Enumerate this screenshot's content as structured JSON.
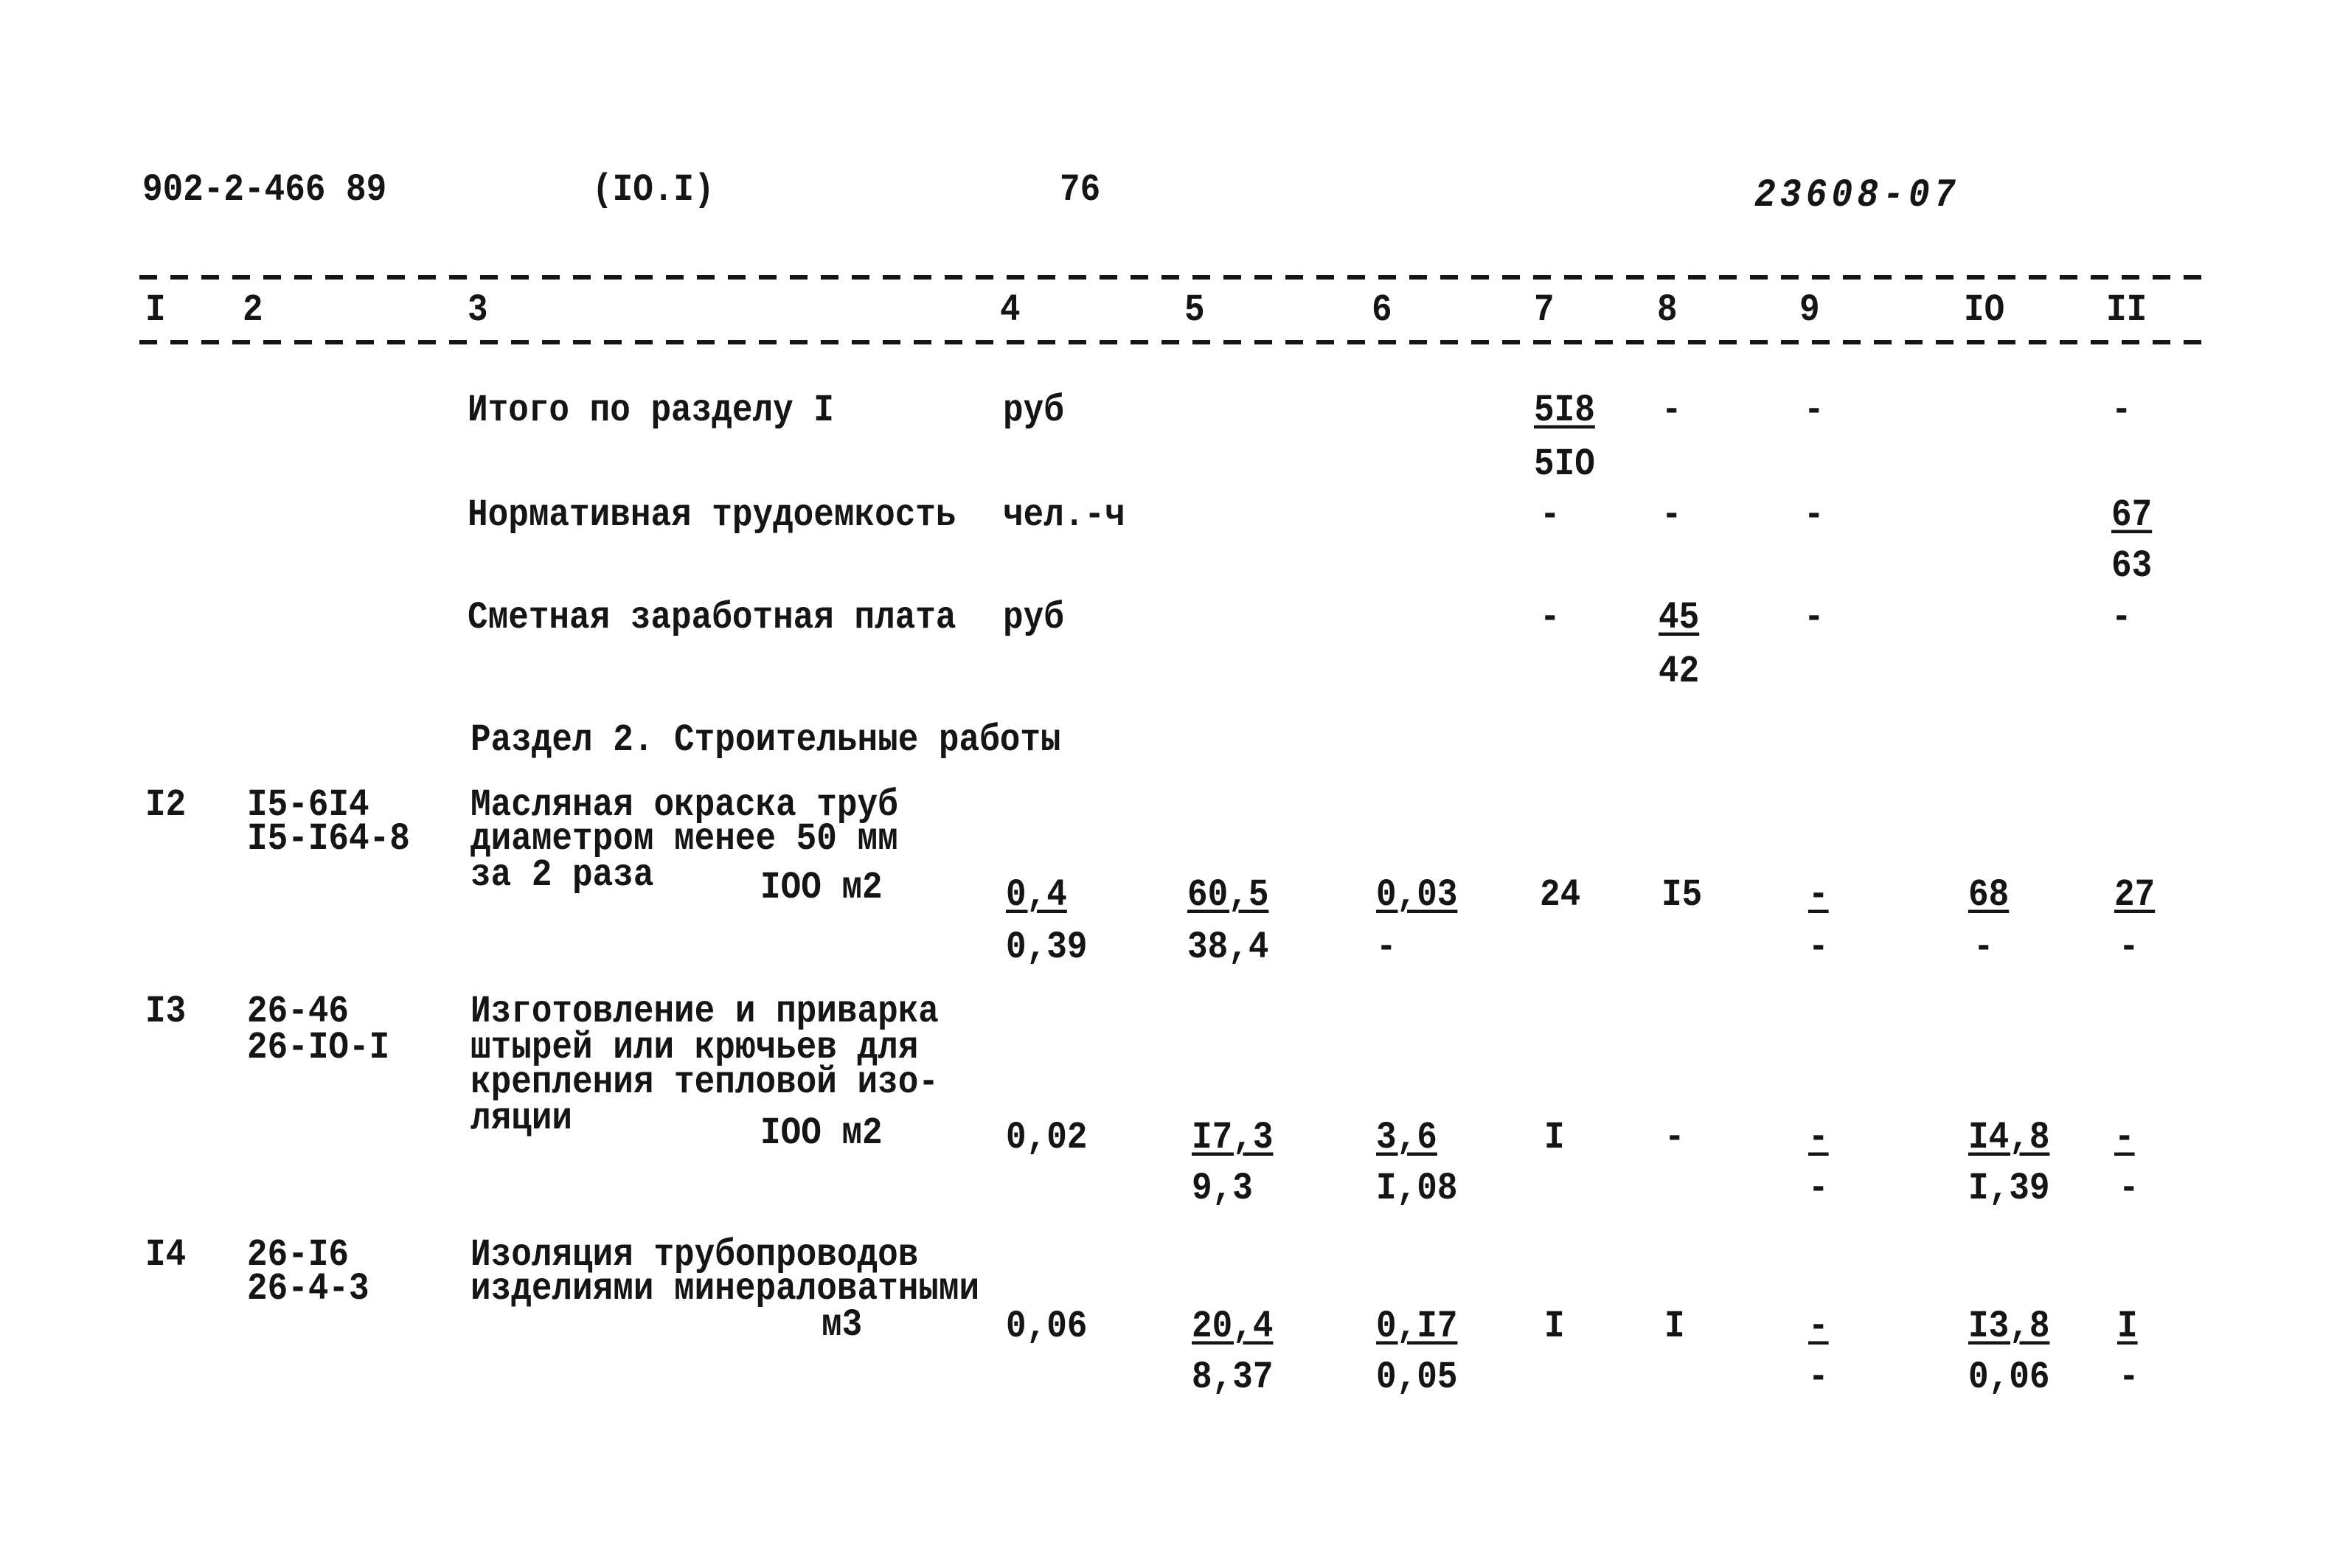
{
  "header": {
    "doc_number": "902-2-466 89",
    "section": "(IO.I)",
    "page": "76",
    "code": "23608-07"
  },
  "columns": [
    "I",
    "2",
    "3",
    "4",
    "5",
    "6",
    "7",
    "8",
    "9",
    "IO",
    "II"
  ],
  "totals": [
    {
      "label": "Итого по разделу I",
      "unit": "руб",
      "c7": "5I8",
      "c7b": "5IO",
      "c8": "-",
      "c9": "-",
      "c11": "-"
    },
    {
      "label": "Нормативная трудоемкость",
      "unit": "чел.-ч",
      "c7": "-",
      "c8": "-",
      "c9": "-",
      "c11": "67",
      "c11b": "63"
    },
    {
      "label": "Сметная заработная плата",
      "unit": "руб",
      "c7": "-",
      "c8": "45",
      "c8b": "42",
      "c9": "-",
      "c11": "-"
    }
  ],
  "section_title": "Раздел 2. Строительные работы",
  "rows": [
    {
      "num": "I2",
      "codes": [
        "I5-6I4",
        "I5-I64-8"
      ],
      "desc": [
        "Масляная окраска труб",
        "диаметром менее 50 мм",
        "за 2 раза"
      ],
      "unit": "IOO м2",
      "c4": "0,4",
      "c4b": "0,39",
      "c5": "60,5",
      "c5b": "38,4",
      "c6": "0,03",
      "c6b": "-",
      "c7": "24",
      "c8": "I5",
      "c9": "-",
      "c9b": "-",
      "c10": "68",
      "c10b": "-",
      "c11": "27",
      "c11b": "-"
    },
    {
      "num": "I3",
      "codes": [
        "26-46",
        "26-IO-I"
      ],
      "desc": [
        "Изготовление и приварка",
        "штырей или крючьев для",
        "крепления тепловой изо-",
        "ляции"
      ],
      "unit": "IOO м2",
      "c4": "0,02",
      "c5": "I7,3",
      "c5b": "9,3",
      "c6": "3,6",
      "c6b": "I,08",
      "c7": "I",
      "c8": "-",
      "c9": "-",
      "c9b": "-",
      "c10": "I4,8",
      "c10b": "I,39",
      "c11": "-",
      "c11b": "-"
    },
    {
      "num": "I4",
      "codes": [
        "26-I6",
        "26-4-3"
      ],
      "desc": [
        "Изоляция трубопроводов",
        "изделиями минераловатными"
      ],
      "unit": "м3",
      "c4": "0,06",
      "c5": "20,4",
      "c5b": "8,37",
      "c6": "0,I7",
      "c6b": "0,05",
      "c7": "I",
      "c8": "I",
      "c9": "-",
      "c9b": "-",
      "c10": "I3,8",
      "c10b": "0,06",
      "c11": "I",
      "c11b": "-"
    }
  ]
}
